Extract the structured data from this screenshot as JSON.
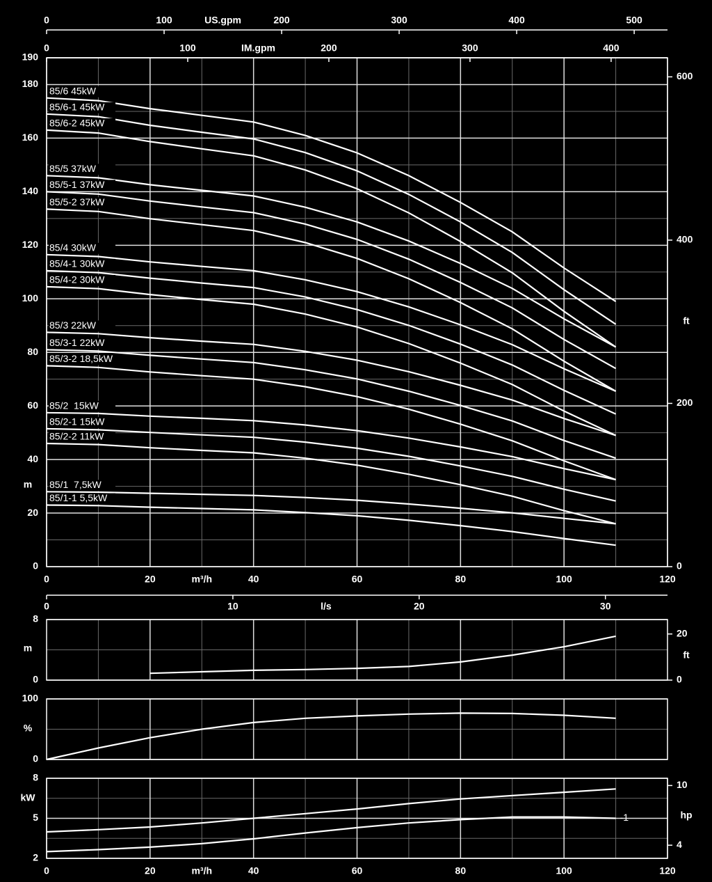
{
  "chart_data": [
    {
      "type": "line",
      "y_label": "m",
      "y2_label": "ft",
      "x_label": "m³/h",
      "color": "#ffffff",
      "grid": true,
      "series_label_position": "start",
      "x": [
        0,
        10,
        20,
        30,
        40,
        50,
        60,
        70,
        80,
        90,
        100,
        110
      ],
      "xlim": [
        0,
        120
      ],
      "xticks": [
        0,
        20,
        40,
        60,
        80,
        100,
        120
      ],
      "xminor": [
        10,
        30,
        50,
        70,
        90,
        110
      ],
      "ylim": [
        0,
        190
      ],
      "yticks": [
        0,
        20,
        40,
        60,
        80,
        100,
        120,
        140,
        160,
        180,
        190
      ],
      "yminor": [
        10,
        30,
        50,
        70,
        90,
        110,
        130,
        150,
        170
      ],
      "y2lim": [
        0,
        623.36
      ],
      "y2ticks": [
        0,
        200,
        400,
        600
      ],
      "top_axes": [
        {
          "label": "US.gpm",
          "xlim": [
            0,
            528.34
          ],
          "xticks": [
            0,
            100,
            200,
            300,
            400,
            500
          ]
        },
        {
          "label": "IM.gpm",
          "xlim": [
            0,
            439.95
          ],
          "xticks": [
            0,
            100,
            200,
            300,
            400
          ]
        }
      ],
      "series": [
        {
          "name": "85/6 45kW",
          "values": [
            175,
            174,
            171,
            168.5,
            166,
            161,
            154.5,
            146,
            136,
            125,
            111.5,
            99
          ]
        },
        {
          "name": "85/6-1 45kW",
          "values": [
            169,
            168,
            164.8,
            162.2,
            159.7,
            154.6,
            147.8,
            139,
            128.7,
            117.3,
            103.4,
            90.5
          ]
        },
        {
          "name": "85/6-2 45kW",
          "values": [
            163,
            161.9,
            158.7,
            156,
            153.4,
            148.1,
            141.1,
            132.1,
            121.4,
            109.7,
            95.3,
            82
          ]
        },
        {
          "name": "85/5 37kW",
          "values": [
            146,
            145.2,
            142.6,
            140.5,
            138.4,
            134.2,
            128.7,
            121.6,
            113.2,
            103.9,
            92.5,
            82
          ]
        },
        {
          "name": "85/5-1 37kW",
          "values": [
            140,
            139.1,
            136.5,
            134.3,
            132.2,
            127.9,
            122.2,
            114.8,
            106.1,
            96.6,
            84.8,
            74
          ]
        },
        {
          "name": "85/5-2 37kW",
          "values": [
            133.5,
            132.6,
            129.9,
            127.7,
            125.5,
            121,
            115.1,
            107.5,
            98.6,
            88.8,
            76.7,
            65.5
          ]
        },
        {
          "name": "85/4 30kW",
          "values": [
            116.5,
            115.8,
            113.8,
            112.1,
            110.5,
            107.1,
            102.7,
            97,
            90.3,
            82.9,
            73.9,
            65.5
          ]
        },
        {
          "name": "85/4-1 30kW",
          "values": [
            110.5,
            109.8,
            107.7,
            105.9,
            104.2,
            100.7,
            96,
            90.1,
            83.1,
            75.3,
            65.8,
            57
          ]
        },
        {
          "name": "85/4-2 30kW",
          "values": [
            104.5,
            103.8,
            101.6,
            99.7,
            98,
            94.3,
            89.5,
            83.3,
            76,
            68,
            58.1,
            49
          ]
        },
        {
          "name": "85/3 22kW",
          "values": [
            87.5,
            87,
            85.5,
            84.2,
            83,
            80.4,
            77.1,
            72.8,
            67.7,
            62.2,
            55.3,
            49
          ]
        },
        {
          "name": "85/3-1 22kW",
          "values": [
            81,
            80.5,
            78.9,
            77.5,
            76.2,
            73.5,
            70.1,
            65.5,
            60.2,
            54.4,
            47.1,
            40.5
          ]
        },
        {
          "name": "85/3-2 18,5kW",
          "values": [
            75,
            74.4,
            72.7,
            71.3,
            70,
            67.2,
            63.5,
            58.8,
            53.2,
            47,
            39.5,
            32.5
          ]
        },
        {
          "name": "85/2  15kW",
          "values": [
            57.5,
            57.2,
            56.2,
            55.4,
            54.5,
            52.9,
            50.8,
            48,
            44.7,
            41.1,
            36.6,
            32.5
          ]
        },
        {
          "name": "85/2-1 15kW",
          "values": [
            51.5,
            51.1,
            50.1,
            49.2,
            48.3,
            46.5,
            44.2,
            41.2,
            37.6,
            33.7,
            28.9,
            24.5
          ]
        },
        {
          "name": "85/2-2 11kW",
          "values": [
            46,
            45.6,
            44.4,
            43.4,
            42.5,
            40.5,
            37.9,
            34.5,
            30.6,
            26.3,
            20.9,
            16
          ]
        },
        {
          "name": "85/1  7,5kW",
          "values": [
            28,
            27.8,
            27.4,
            27,
            26.6,
            25.8,
            24.8,
            23.4,
            21.8,
            20.1,
            18,
            16
          ]
        },
        {
          "name": "85/1-1 5,5kW",
          "values": [
            23,
            22.8,
            22.2,
            21.7,
            21.2,
            20.2,
            19,
            17.3,
            15.3,
            13.1,
            10.5,
            8
          ]
        }
      ]
    },
    {
      "type": "line",
      "y_label": "m",
      "y2_label": "ft",
      "color": "#ffffff",
      "grid": true,
      "x": [
        20,
        30,
        40,
        50,
        60,
        70,
        80,
        90,
        100,
        110
      ],
      "xlim": [
        0,
        120
      ],
      "xgrid": [
        20,
        40,
        60,
        80,
        100
      ],
      "xminor": [
        10,
        30,
        50,
        70,
        90,
        110
      ],
      "ylim": [
        0,
        8
      ],
      "yticks": [
        0,
        8
      ],
      "yminor": [
        4
      ],
      "y2lim": [
        0,
        26.25
      ],
      "y2ticks": [
        0,
        20
      ],
      "top_axes": [
        {
          "label": "l/s",
          "xlim": [
            0,
            33.333
          ],
          "xticks": [
            0,
            10,
            20,
            30
          ]
        }
      ],
      "series": [
        {
          "values": [
            0.9,
            1.1,
            1.3,
            1.4,
            1.55,
            1.8,
            2.4,
            3.3,
            4.4,
            5.8
          ]
        }
      ]
    },
    {
      "type": "line",
      "y_label": "%",
      "color": "#ffffff",
      "grid": true,
      "x": [
        0,
        10,
        20,
        30,
        40,
        50,
        60,
        70,
        80,
        90,
        100,
        110
      ],
      "xlim": [
        0,
        120
      ],
      "xgrid": [
        20,
        40,
        60,
        80,
        100
      ],
      "xminor": [
        10,
        30,
        50,
        70,
        90,
        110
      ],
      "ylim": [
        0,
        100
      ],
      "yticks": [
        0,
        100
      ],
      "yminor": [
        50
      ],
      "series": [
        {
          "values": [
            0,
            19,
            36,
            50,
            61,
            68,
            72,
            75,
            76.5,
            76,
            73,
            68
          ]
        }
      ]
    },
    {
      "type": "line",
      "y_label": "kW",
      "y2_label": "hp",
      "x_label": "m³/h",
      "color": "#ffffff",
      "grid": true,
      "series_label_position": "end",
      "x": [
        0,
        10,
        20,
        30,
        40,
        50,
        60,
        70,
        80,
        90,
        100,
        110
      ],
      "xlim": [
        0,
        120
      ],
      "xticks": [
        0,
        20,
        40,
        60,
        80,
        100,
        120
      ],
      "xminor": [
        10,
        30,
        50,
        70,
        90,
        110
      ],
      "ylim": [
        2,
        8
      ],
      "yticks": [
        2,
        5,
        8
      ],
      "yminor": [
        3.5,
        6.5
      ],
      "y2lim": [
        2.682,
        10.728
      ],
      "y2ticks": [
        4,
        10
      ],
      "series": [
        {
          "values": [
            3.98,
            4.15,
            4.35,
            4.65,
            5,
            5.35,
            5.7,
            6.1,
            6.45,
            6.7,
            6.95,
            7.2
          ]
        },
        {
          "name": "-1",
          "values": [
            2.5,
            2.65,
            2.84,
            3.1,
            3.46,
            3.9,
            4.3,
            4.65,
            4.9,
            5.1,
            5.1,
            5
          ]
        }
      ]
    }
  ]
}
